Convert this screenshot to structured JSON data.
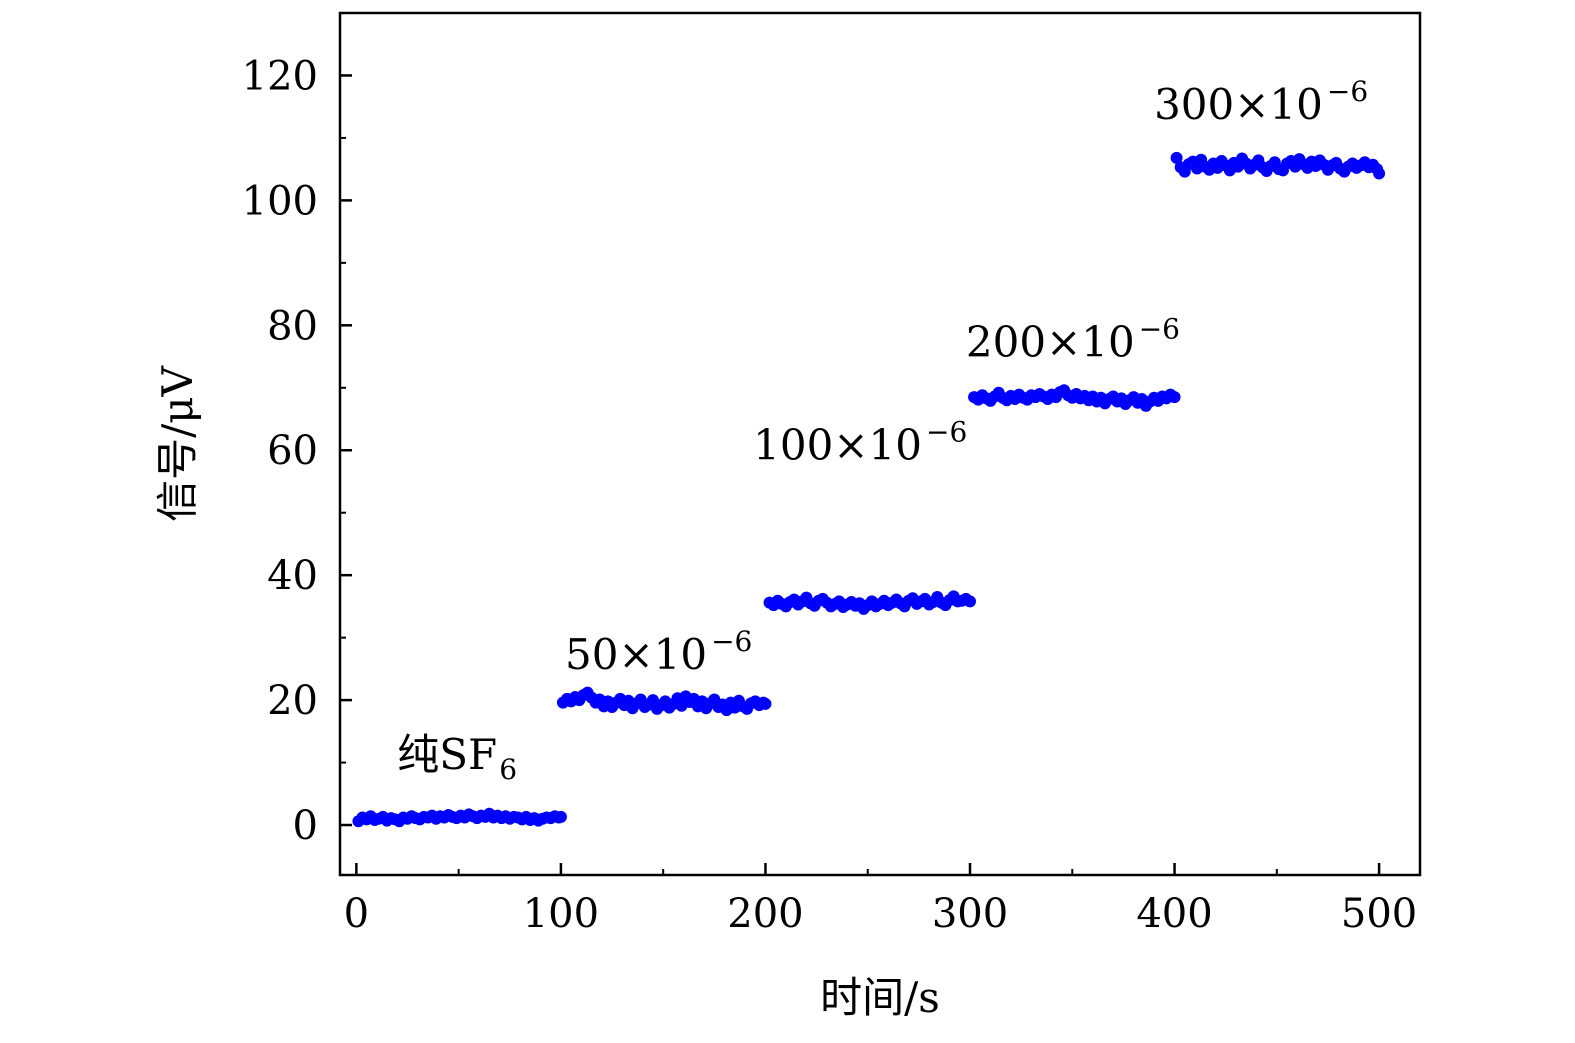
{
  "chart_data": {
    "type": "scatter",
    "xlabel": "时间/s",
    "ylabel": "信号/μV",
    "xlim": [
      -8,
      520
    ],
    "ylim": [
      -8,
      130
    ],
    "xticks": [
      0,
      100,
      200,
      300,
      400,
      500
    ],
    "yticks": [
      0,
      20,
      40,
      60,
      80,
      100,
      120
    ],
    "grid": false,
    "marker_color": "#0000ff",
    "series": [
      {
        "x": [
          1,
          3,
          5,
          7,
          9,
          11,
          13,
          15,
          17,
          19,
          21,
          23,
          25,
          27,
          29,
          31,
          33,
          35,
          37,
          39,
          41,
          43,
          45,
          47,
          49,
          51,
          53,
          55,
          57,
          59,
          61,
          63,
          65,
          67,
          69,
          71,
          73,
          75,
          77,
          79,
          81,
          83,
          85,
          87,
          89,
          91,
          93,
          95,
          97,
          99,
          100
        ],
        "y": [
          0.6,
          1.2,
          0.9,
          1.4,
          0.8,
          1.0,
          1.3,
          0.7,
          1.1,
          0.9,
          0.6,
          1.2,
          1.0,
          1.4,
          1.1,
          0.9,
          1.3,
          1.2,
          1.5,
          1.0,
          1.4,
          1.2,
          1.6,
          1.3,
          1.1,
          1.5,
          1.2,
          1.7,
          1.4,
          1.1,
          1.5,
          1.3,
          1.8,
          1.2,
          1.5,
          1.1,
          1.4,
          1.0,
          1.3,
          1.2,
          0.9,
          1.3,
          0.8,
          1.1,
          0.7,
          1.0,
          1.2,
          1.1,
          1.4,
          1.2,
          1.3
        ]
      },
      {
        "x": [
          101,
          103,
          105,
          107,
          109,
          111,
          113,
          115,
          117,
          119,
          121,
          123,
          125,
          127,
          129,
          131,
          133,
          135,
          137,
          139,
          141,
          143,
          145,
          147,
          149,
          151,
          153,
          155,
          157,
          159,
          161,
          163,
          165,
          167,
          169,
          171,
          173,
          175,
          177,
          179,
          181,
          183,
          185,
          187,
          189,
          191,
          193,
          195,
          197,
          199,
          200
        ],
        "y": [
          19.6,
          20.2,
          19.8,
          20.5,
          20.0,
          20.8,
          21.2,
          20.4,
          19.6,
          20.1,
          19.0,
          19.8,
          18.9,
          19.6,
          20.2,
          19.2,
          19.9,
          18.7,
          19.5,
          20.1,
          18.9,
          19.3,
          20.0,
          18.6,
          19.2,
          19.8,
          18.8,
          19.4,
          20.3,
          19.1,
          20.6,
          19.7,
          20.2,
          19.0,
          19.8,
          18.7,
          19.5,
          20.1,
          18.9,
          19.3,
          18.4,
          19.6,
          18.8,
          19.9,
          19.0,
          18.6,
          19.5,
          19.8,
          19.2,
          19.6,
          19.4
        ]
      },
      {
        "x": [
          202,
          204,
          206,
          208,
          210,
          212,
          214,
          216,
          218,
          220,
          222,
          224,
          226,
          228,
          230,
          232,
          234,
          236,
          238,
          240,
          242,
          244,
          246,
          248,
          250,
          252,
          254,
          256,
          258,
          260,
          262,
          264,
          266,
          268,
          270,
          272,
          274,
          276,
          278,
          280,
          282,
          284,
          286,
          288,
          290,
          292,
          294,
          296,
          298,
          300
        ],
        "y": [
          35.6,
          35.2,
          35.9,
          35.4,
          35.0,
          35.7,
          36.1,
          35.3,
          35.8,
          36.4,
          35.5,
          35.1,
          35.9,
          36.2,
          35.6,
          35.0,
          35.4,
          35.8,
          34.9,
          35.3,
          35.7,
          35.1,
          35.5,
          34.6,
          35.2,
          35.8,
          35.0,
          35.4,
          35.9,
          35.2,
          35.6,
          36.1,
          35.5,
          35.0,
          35.9,
          36.3,
          35.4,
          35.8,
          36.2,
          35.3,
          35.7,
          36.5,
          35.6,
          35.2,
          36.0,
          36.6,
          35.8,
          35.9,
          36.2,
          35.8
        ]
      },
      {
        "x": [
          302,
          304,
          306,
          308,
          310,
          312,
          314,
          316,
          318,
          320,
          322,
          324,
          326,
          328,
          330,
          332,
          334,
          336,
          338,
          340,
          342,
          344,
          346,
          348,
          350,
          352,
          354,
          356,
          358,
          360,
          362,
          364,
          366,
          368,
          370,
          372,
          374,
          376,
          378,
          380,
          382,
          384,
          386,
          388,
          390,
          392,
          394,
          396,
          398,
          400
        ],
        "y": [
          68.5,
          68.1,
          68.8,
          68.3,
          67.9,
          68.6,
          69.2,
          68.4,
          68.0,
          68.7,
          68.2,
          68.9,
          68.4,
          68.1,
          68.8,
          68.5,
          69.0,
          68.6,
          68.2,
          68.9,
          68.5,
          69.3,
          69.6,
          68.8,
          68.4,
          69.0,
          68.3,
          68.7,
          68.0,
          68.6,
          67.8,
          68.4,
          67.5,
          68.2,
          68.6,
          67.8,
          68.3,
          67.4,
          68.0,
          68.5,
          67.6,
          68.2,
          67.1,
          67.8,
          68.4,
          67.9,
          68.6,
          68.3,
          68.9,
          68.5
        ]
      },
      {
        "x": [
          401,
          403,
          405,
          407,
          409,
          411,
          413,
          415,
          417,
          419,
          421,
          423,
          425,
          427,
          429,
          431,
          433,
          435,
          437,
          439,
          441,
          443,
          445,
          447,
          449,
          451,
          453,
          455,
          457,
          459,
          461,
          463,
          465,
          467,
          469,
          471,
          473,
          475,
          477,
          479,
          481,
          483,
          485,
          487,
          489,
          491,
          493,
          495,
          497,
          499,
          500
        ],
        "y": [
          106.8,
          105.3,
          104.6,
          105.8,
          106.2,
          105.1,
          106.5,
          105.4,
          104.9,
          105.9,
          105.2,
          106.3,
          105.6,
          104.8,
          106.0,
          105.4,
          106.7,
          105.9,
          105.1,
          105.7,
          106.4,
          105.3,
          104.7,
          105.5,
          106.1,
          105.0,
          104.8,
          105.9,
          106.3,
          105.4,
          106.6,
          105.8,
          105.2,
          106.2,
          105.5,
          106.4,
          105.7,
          104.9,
          105.6,
          106.0,
          105.1,
          104.6,
          105.4,
          105.9,
          105.2,
          105.6,
          106.1,
          105.3,
          105.7,
          105.0,
          104.3
        ]
      }
    ],
    "annotations": [
      {
        "main": "纯SF",
        "sub": "6",
        "x": 20,
        "y": 9
      },
      {
        "main": "50×10",
        "sup": "−6",
        "x": 102,
        "y": 25
      },
      {
        "main": "100×10",
        "sup": "−6",
        "x": 194,
        "y": 58.5
      },
      {
        "main": "200×10",
        "sup": "−6",
        "x": 298,
        "y": 75
      },
      {
        "main": "300×10",
        "sup": "−6",
        "x": 390,
        "y": 113
      }
    ]
  }
}
